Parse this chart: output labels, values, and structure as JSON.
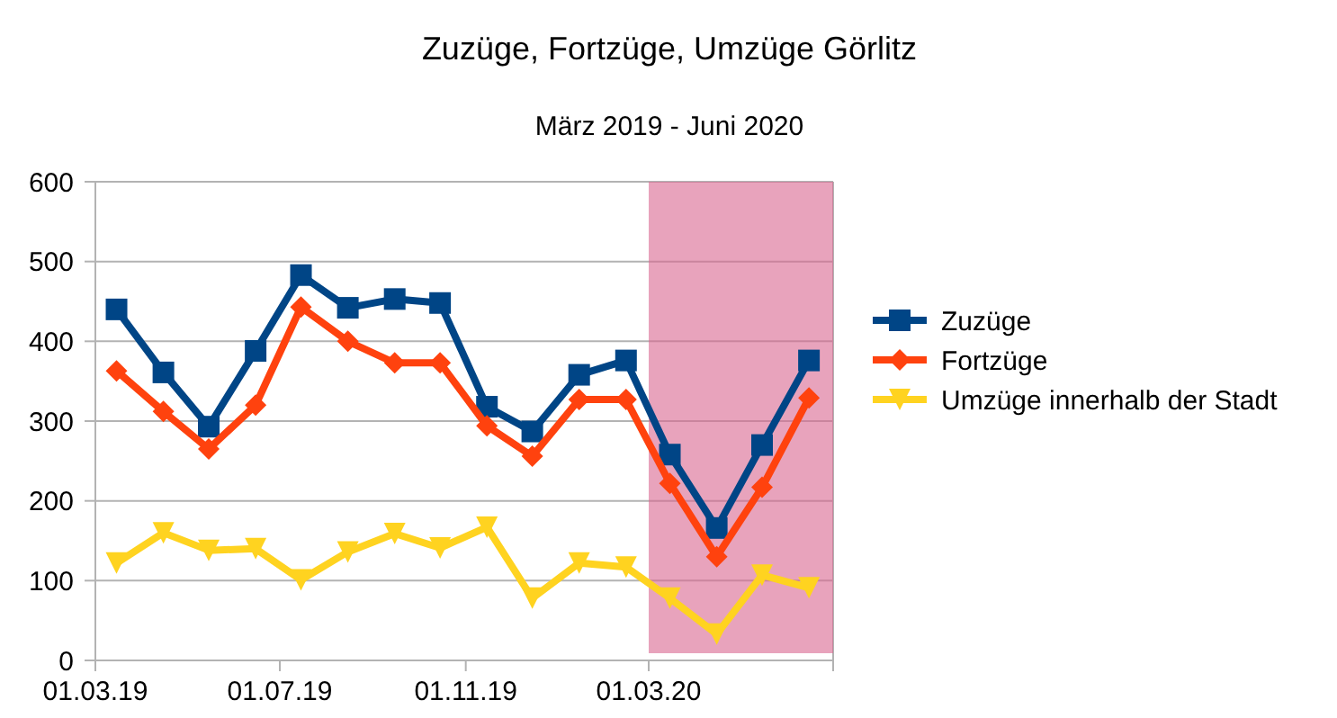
{
  "chart_data": {
    "type": "line",
    "title": "Zuzüge, Fortzüge, Umzüge Görlitz",
    "subtitle": "März 2019 - Juni 2020",
    "x": [
      "2019-03-15",
      "2019-04-15",
      "2019-05-15",
      "2019-06-15",
      "2019-07-15",
      "2019-08-15",
      "2019-09-15",
      "2019-10-15",
      "2019-11-15",
      "2019-12-15",
      "2020-01-15",
      "2020-02-15",
      "2020-03-15",
      "2020-04-15",
      "2020-05-15",
      "2020-06-15"
    ],
    "series": [
      {
        "name": "Zuzüge",
        "color": "#004586",
        "marker": "square",
        "values": [
          440,
          361,
          293,
          388,
          483,
          442,
          453,
          448,
          318,
          287,
          358,
          376,
          258,
          166,
          270,
          376
        ]
      },
      {
        "name": "Fortzüge",
        "color": "#ff420e",
        "marker": "diamond",
        "values": [
          363,
          312,
          265,
          320,
          443,
          400,
          373,
          373,
          294,
          256,
          327,
          327,
          222,
          130,
          217,
          329
        ]
      },
      {
        "name": "Umzüge innerhalb der Stadt",
        "color": "#ffd320",
        "marker": "triangle",
        "values": [
          122,
          160,
          138,
          140,
          101,
          136,
          159,
          141,
          167,
          78,
          122,
          117,
          78,
          33,
          107,
          91
        ]
      }
    ],
    "xlim": [
      "2019-03-01",
      "2020-07-01"
    ],
    "xticks": [
      {
        "value": "2019-03-01",
        "label": "01.03.19"
      },
      {
        "value": "2019-07-01",
        "label": "01.07.19"
      },
      {
        "value": "2019-11-01",
        "label": "01.11.19"
      },
      {
        "value": "2020-03-01",
        "label": "01.03.20"
      },
      {
        "value": "2020-07-01",
        "label": null
      }
    ],
    "ylim": [
      0,
      600
    ],
    "yticks": [
      0,
      100,
      200,
      300,
      400,
      500,
      600
    ],
    "bands": [
      {
        "axis": "x",
        "from": "2020-03-01",
        "to": "2020-07-01",
        "color": "#d9668f"
      }
    ],
    "grid": "y",
    "legend": "right",
    "line_style": "solid"
  }
}
